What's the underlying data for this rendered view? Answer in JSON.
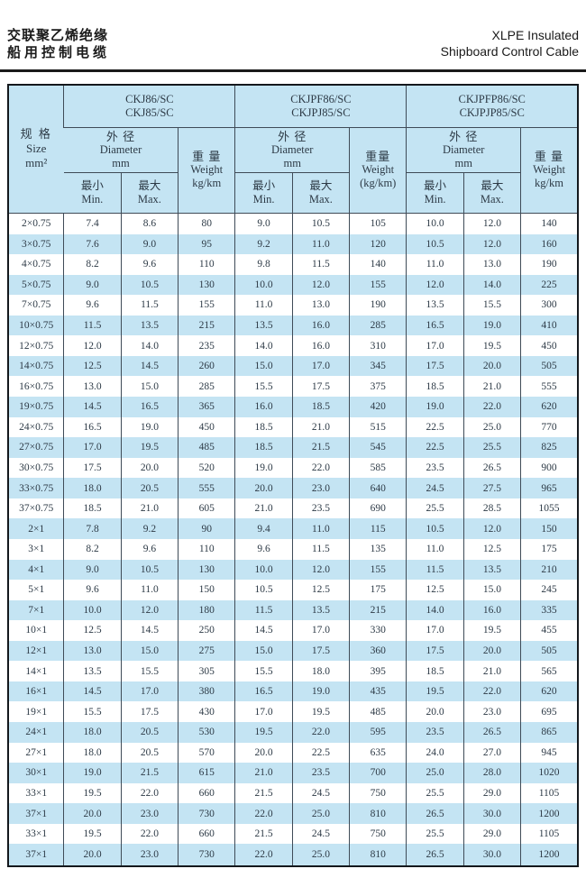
{
  "header": {
    "title_cn_line1": "交联聚乙烯绝缘",
    "title_cn_line2": "船用控制电缆",
    "title_en_line1": "XLPE Insulated",
    "title_en_line2": "Shipboard Control Cable"
  },
  "colors": {
    "table_blue": "#c4e4f3",
    "text_dark": "#2d3a46",
    "grid_line": "#3f4b57",
    "frame_dark": "#14181c"
  },
  "table": {
    "size_header": {
      "cn": "规 格",
      "en": "Size",
      "unit": "mm²"
    },
    "diameter_header": {
      "cn": "外 径",
      "en": "Diameter",
      "unit": "mm"
    },
    "min_header": {
      "cn": "最小",
      "en": "Min."
    },
    "max_header": {
      "cn": "最大",
      "en": "Max."
    },
    "groups": [
      {
        "model_line1": "CKJ86/SC",
        "model_line2": "CKJ85/SC",
        "weight_cn": "重 量",
        "weight_en": "Weight",
        "weight_unit": "kg/km"
      },
      {
        "model_line1": "CKJPF86/SC",
        "model_line2": "CKJPJ85/SC",
        "weight_cn": "重量",
        "weight_en": "Weight",
        "weight_unit": "(kg/km)"
      },
      {
        "model_line1": "CKJPFP86/SC",
        "model_line2": "CKJPJP85/SC",
        "weight_cn": "重 量",
        "weight_en": "Weight",
        "weight_unit": "kg/km"
      }
    ],
    "rows": [
      [
        "2×0.75",
        "7.4",
        "8.6",
        "80",
        "9.0",
        "10.5",
        "105",
        "10.0",
        "12.0",
        "140"
      ],
      [
        "3×0.75",
        "7.6",
        "9.0",
        "95",
        "9.2",
        "11.0",
        "120",
        "10.5",
        "12.0",
        "160"
      ],
      [
        "4×0.75",
        "8.2",
        "9.6",
        "110",
        "9.8",
        "11.5",
        "140",
        "11.0",
        "13.0",
        "190"
      ],
      [
        "5×0.75",
        "9.0",
        "10.5",
        "130",
        "10.0",
        "12.0",
        "155",
        "12.0",
        "14.0",
        "225"
      ],
      [
        "7×0.75",
        "9.6",
        "11.5",
        "155",
        "11.0",
        "13.0",
        "190",
        "13.5",
        "15.5",
        "300"
      ],
      [
        "10×0.75",
        "11.5",
        "13.5",
        "215",
        "13.5",
        "16.0",
        "285",
        "16.5",
        "19.0",
        "410"
      ],
      [
        "12×0.75",
        "12.0",
        "14.0",
        "235",
        "14.0",
        "16.0",
        "310",
        "17.0",
        "19.5",
        "450"
      ],
      [
        "14×0.75",
        "12.5",
        "14.5",
        "260",
        "15.0",
        "17.0",
        "345",
        "17.5",
        "20.0",
        "505"
      ],
      [
        "16×0.75",
        "13.0",
        "15.0",
        "285",
        "15.5",
        "17.5",
        "375",
        "18.5",
        "21.0",
        "555"
      ],
      [
        "19×0.75",
        "14.5",
        "16.5",
        "365",
        "16.0",
        "18.5",
        "420",
        "19.0",
        "22.0",
        "620"
      ],
      [
        "24×0.75",
        "16.5",
        "19.0",
        "450",
        "18.5",
        "21.0",
        "515",
        "22.5",
        "25.0",
        "770"
      ],
      [
        "27×0.75",
        "17.0",
        "19.5",
        "485",
        "18.5",
        "21.5",
        "545",
        "22.5",
        "25.5",
        "825"
      ],
      [
        "30×0.75",
        "17.5",
        "20.0",
        "520",
        "19.0",
        "22.0",
        "585",
        "23.5",
        "26.5",
        "900"
      ],
      [
        "33×0.75",
        "18.0",
        "20.5",
        "555",
        "20.0",
        "23.0",
        "640",
        "24.5",
        "27.5",
        "965"
      ],
      [
        "37×0.75",
        "18.5",
        "21.0",
        "605",
        "21.0",
        "23.5",
        "690",
        "25.5",
        "28.5",
        "1055"
      ],
      [
        "2×1",
        "7.8",
        "9.2",
        "90",
        "9.4",
        "11.0",
        "115",
        "10.5",
        "12.0",
        "150"
      ],
      [
        "3×1",
        "8.2",
        "9.6",
        "110",
        "9.6",
        "11.5",
        "135",
        "11.0",
        "12.5",
        "175"
      ],
      [
        "4×1",
        "9.0",
        "10.5",
        "130",
        "10.0",
        "12.0",
        "155",
        "11.5",
        "13.5",
        "210"
      ],
      [
        "5×1",
        "9.6",
        "11.0",
        "150",
        "10.5",
        "12.5",
        "175",
        "12.5",
        "15.0",
        "245"
      ],
      [
        "7×1",
        "10.0",
        "12.0",
        "180",
        "11.5",
        "13.5",
        "215",
        "14.0",
        "16.0",
        "335"
      ],
      [
        "10×1",
        "12.5",
        "14.5",
        "250",
        "14.5",
        "17.0",
        "330",
        "17.0",
        "19.5",
        "455"
      ],
      [
        "12×1",
        "13.0",
        "15.0",
        "275",
        "15.0",
        "17.5",
        "360",
        "17.5",
        "20.0",
        "505"
      ],
      [
        "14×1",
        "13.5",
        "15.5",
        "305",
        "15.5",
        "18.0",
        "395",
        "18.5",
        "21.0",
        "565"
      ],
      [
        "16×1",
        "14.5",
        "17.0",
        "380",
        "16.5",
        "19.0",
        "435",
        "19.5",
        "22.0",
        "620"
      ],
      [
        "19×1",
        "15.5",
        "17.5",
        "430",
        "17.0",
        "19.5",
        "485",
        "20.0",
        "23.0",
        "695"
      ],
      [
        "24×1",
        "18.0",
        "20.5",
        "530",
        "19.5",
        "22.0",
        "595",
        "23.5",
        "26.5",
        "865"
      ],
      [
        "27×1",
        "18.0",
        "20.5",
        "570",
        "20.0",
        "22.5",
        "635",
        "24.0",
        "27.0",
        "945"
      ],
      [
        "30×1",
        "19.0",
        "21.5",
        "615",
        "21.0",
        "23.5",
        "700",
        "25.0",
        "28.0",
        "1020"
      ],
      [
        "33×1",
        "19.5",
        "22.0",
        "660",
        "21.5",
        "24.5",
        "750",
        "25.5",
        "29.0",
        "1105"
      ],
      [
        "37×1",
        "20.0",
        "23.0",
        "730",
        "22.0",
        "25.0",
        "810",
        "26.5",
        "30.0",
        "1200"
      ],
      [
        "33×1",
        "19.5",
        "22.0",
        "660",
        "21.5",
        "24.5",
        "750",
        "25.5",
        "29.0",
        "1105"
      ],
      [
        "37×1",
        "20.0",
        "23.0",
        "730",
        "22.0",
        "25.0",
        "810",
        "26.5",
        "30.0",
        "1200"
      ]
    ]
  }
}
